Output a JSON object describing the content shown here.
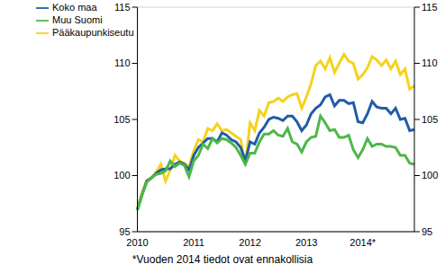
{
  "chart_data": {
    "type": "line",
    "annotation": "*Vuoden 2014 tiedot ovat ennakollisia",
    "categories": [
      "2010",
      null,
      null,
      null,
      null,
      null,
      null,
      null,
      null,
      null,
      null,
      null,
      "2011",
      null,
      null,
      null,
      null,
      null,
      null,
      null,
      null,
      null,
      null,
      null,
      "2012",
      null,
      null,
      null,
      null,
      null,
      null,
      null,
      null,
      null,
      null,
      null,
      "2013",
      null,
      null,
      null,
      null,
      null,
      null,
      null,
      null,
      null,
      null,
      null,
      "2014*",
      null,
      null,
      null,
      null,
      null,
      null,
      null,
      null,
      null,
      null,
      null
    ],
    "series": [
      {
        "name": "Pääkaupunkiseutu",
        "color": "#f5d21c",
        "values": [
          97,
          98.5,
          99.6,
          99.8,
          100.3,
          101.0,
          99.5,
          100.5,
          101.8,
          101.3,
          101.1,
          100.8,
          102.2,
          103.2,
          103.0,
          104.2,
          104.0,
          104.6,
          104.0,
          104.1,
          103.8,
          103.5,
          103.2,
          101.0,
          104.7,
          104.0,
          105.8,
          105.3,
          106.5,
          106.6,
          106.9,
          106.6,
          107.0,
          107.2,
          107.3,
          106.0,
          107.0,
          108.2,
          109.8,
          110.2,
          109.5,
          110.5,
          109.2,
          110.0,
          110.8,
          110.2,
          110.0,
          108.6,
          109.0,
          109.6,
          110.6,
          110.3,
          109.8,
          110.3,
          109.5,
          110.2,
          109.0,
          109.5,
          107.7,
          108.0
        ]
      },
      {
        "name": "Koko maa",
        "color": "#1f5ca8",
        "values": [
          97,
          98.3,
          99.5,
          99.8,
          100.2,
          100.5,
          100.6,
          100.6,
          101.0,
          101.2,
          101.0,
          100.5,
          101.8,
          102.5,
          102.9,
          103.3,
          103.3,
          103.0,
          103.8,
          103.6,
          103.2,
          103.0,
          102.5,
          101.3,
          103.0,
          102.8,
          103.8,
          104.3,
          105.0,
          105.2,
          105.1,
          104.9,
          105.3,
          105.3,
          104.8,
          104.0,
          104.5,
          105.5,
          106.0,
          106.3,
          107.0,
          107.2,
          106.2,
          106.7,
          106.7,
          106.4,
          106.5,
          104.8,
          104.7,
          105.5,
          106.6,
          106.1,
          106.0,
          106.0,
          105.5,
          106.0,
          105.0,
          105.1,
          104.0,
          104.1
        ]
      },
      {
        "name": "Muu Suomi",
        "color": "#4cb848",
        "values": [
          96.9,
          98.3,
          99.4,
          99.8,
          100.1,
          100.2,
          100.4,
          101.3,
          100.8,
          101.1,
          100.9,
          99.9,
          101.3,
          101.8,
          102.8,
          102.4,
          103.3,
          102.9,
          103.3,
          103.2,
          102.9,
          102.5,
          101.8,
          101.0,
          102.0,
          102.0,
          103.0,
          103.7,
          103.7,
          104.0,
          103.6,
          103.5,
          104.2,
          103.0,
          102.8,
          102.1,
          103.0,
          103.4,
          103.5,
          105.3,
          104.7,
          104.0,
          104.1,
          103.4,
          103.4,
          103.6,
          102.3,
          101.6,
          102.3,
          103.3,
          102.6,
          102.8,
          102.8,
          102.6,
          102.6,
          102.5,
          101.8,
          101.8,
          101.1,
          101.0
        ]
      }
    ],
    "ylim": [
      95,
      115
    ],
    "yticks": [
      95,
      100,
      105,
      110,
      115
    ],
    "y2lim": [
      95,
      115
    ],
    "y2ticks": [
      95,
      100,
      105,
      110,
      115
    ],
    "grid": true,
    "legend": "top-left"
  }
}
